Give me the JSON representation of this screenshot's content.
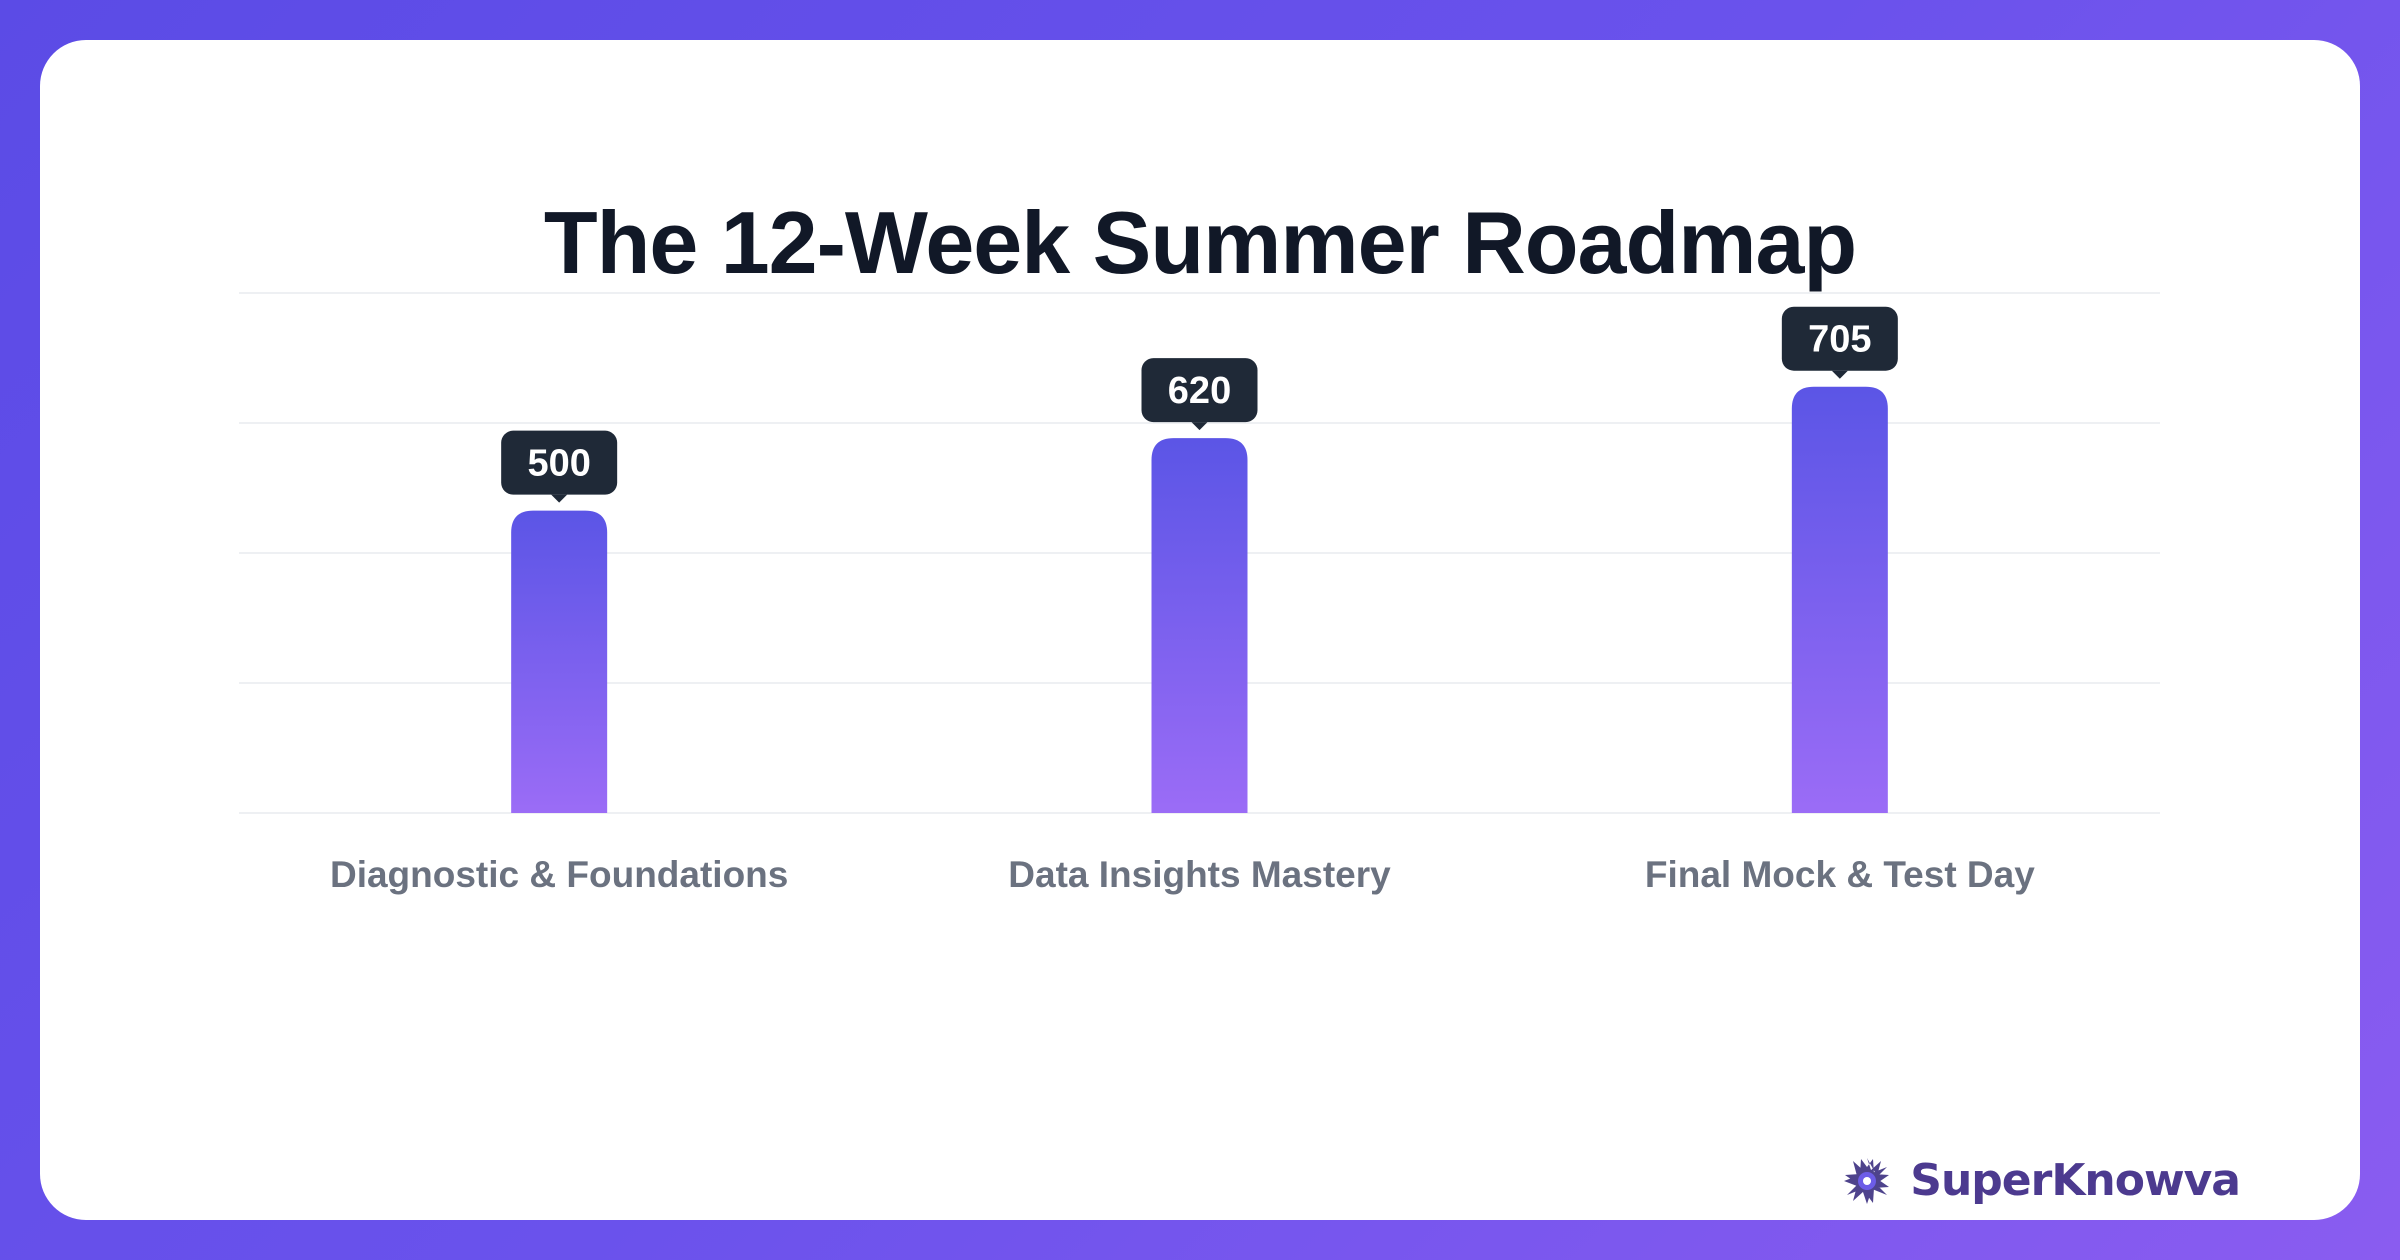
{
  "chart_data": {
    "type": "bar",
    "title": "The 12-Week Summer Roadmap",
    "categories": [
      "Diagnostic & Foundations",
      "Data Insights Mastery",
      "Final Mock & Test Day"
    ],
    "values": [
      500,
      620,
      705
    ],
    "value_labels": [
      "500",
      "620",
      "705"
    ],
    "ylim": [
      0,
      860
    ],
    "grid": true,
    "xlabel": "",
    "ylabel": "",
    "colors": {
      "bar_top": "#5b55e6",
      "bar_bottom": "#9b6cf6",
      "label_bg": "#1f2937",
      "label_text": "#ffffff",
      "category_text": "#6b7280",
      "grid": "#eef0f3"
    }
  },
  "brand": {
    "name": "SuperKnowva",
    "logo_icon": "starburst-logo-icon"
  }
}
